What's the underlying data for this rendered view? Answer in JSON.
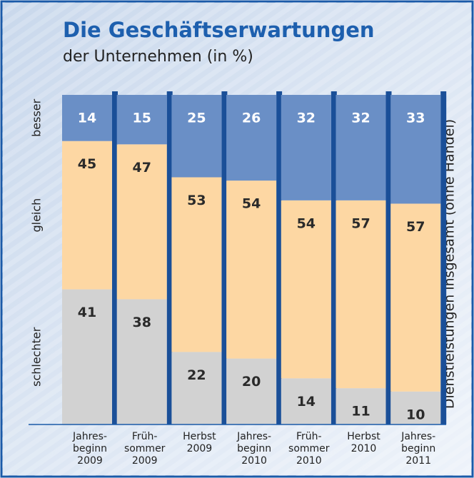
{
  "chart_data": {
    "type": "stacked_bar_100",
    "title": "Die Geschäftserwartungen",
    "subtitle": "der Unternehmen (in %)",
    "side_label": "Dienstleistungen insgesamt (ohne Handel)",
    "categories": [
      "Jahres-\nbeginn\n2009",
      "Früh-\nsommer\n2009",
      "Herbst\n2009",
      "Jahres-\nbeginn\n2010",
      "Früh-\nsommer\n2010",
      "Herbst\n2010",
      "Jahres-\nbeginn\n2011"
    ],
    "series": [
      {
        "name": "schlechter",
        "color": "#d2d2d2",
        "values": [
          41,
          38,
          22,
          20,
          14,
          11,
          10
        ]
      },
      {
        "name": "gleich",
        "color": "#fdd7a3",
        "values": [
          45,
          47,
          53,
          54,
          54,
          57,
          57
        ]
      },
      {
        "name": "besser",
        "color": "#6a8fc6",
        "values": [
          14,
          15,
          25,
          26,
          32,
          32,
          33
        ]
      }
    ],
    "ylim": [
      0,
      100
    ]
  }
}
